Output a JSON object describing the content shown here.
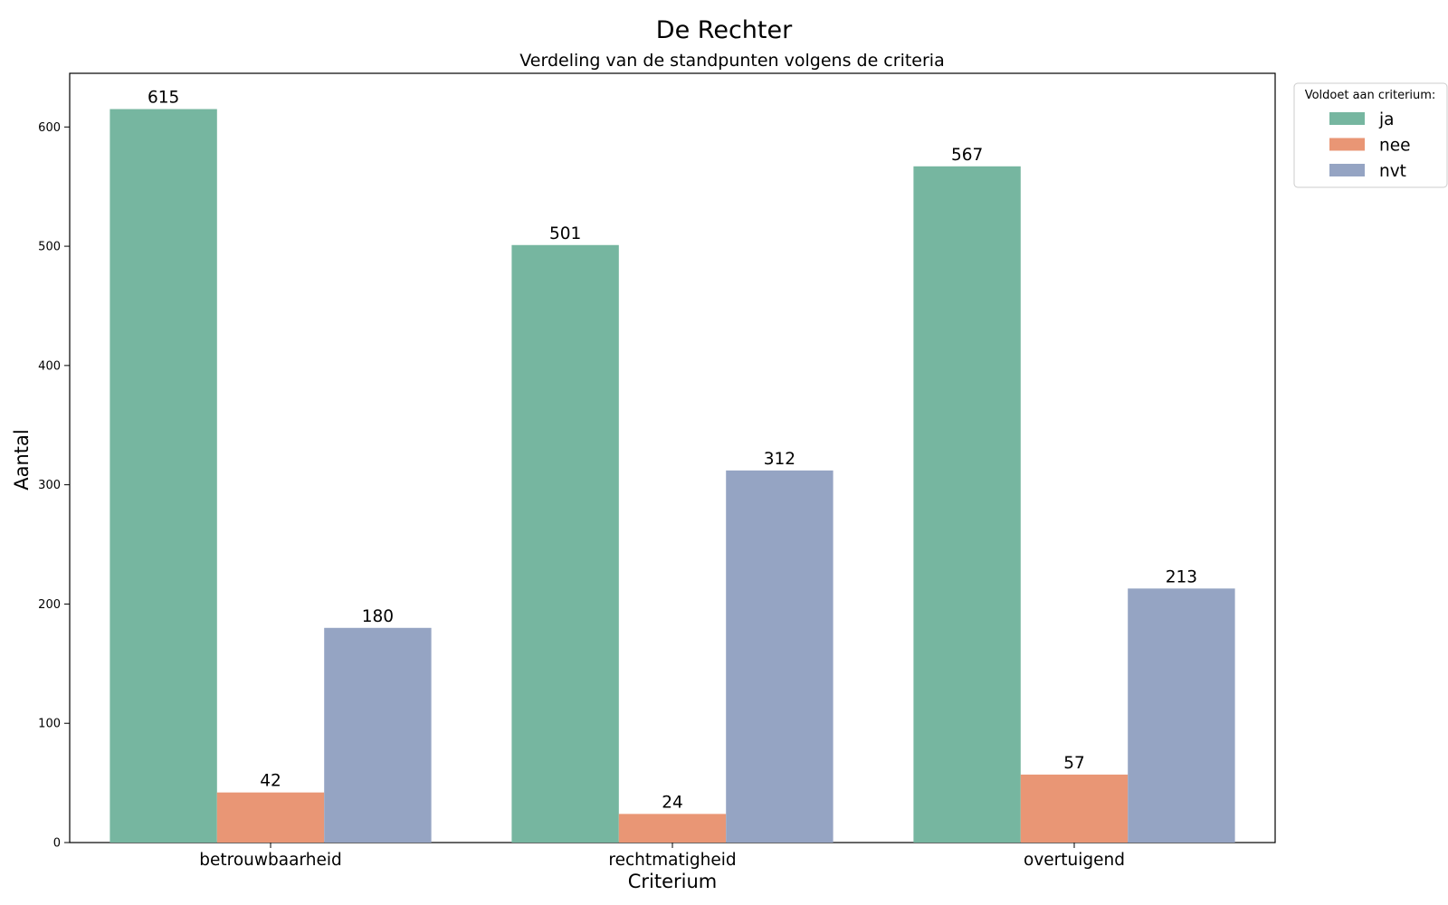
{
  "chart_data": {
    "type": "bar",
    "title": "De Rechter",
    "subtitle": "Verdeling van de standpunten volgens de criteria",
    "xlabel": "Criterium",
    "ylabel": "Aantal",
    "categories": [
      "betrouwbaarheid",
      "rechtmatigheid",
      "overtuigend"
    ],
    "series": [
      {
        "name": "ja",
        "values": [
          615,
          501,
          567
        ],
        "color": "#76b6a0"
      },
      {
        "name": "nee",
        "values": [
          42,
          24,
          57
        ],
        "color": "#e99675"
      },
      {
        "name": "nvt",
        "values": [
          180,
          312,
          213
        ],
        "color": "#95a4c3"
      }
    ],
    "ylim": [
      0,
      645
    ],
    "yticks": [
      0,
      100,
      200,
      300,
      400,
      500,
      600
    ],
    "grid": false,
    "legend": {
      "title": "Voldoet aan criterium:",
      "placement": "outside-top-right"
    },
    "data_labels": true
  }
}
